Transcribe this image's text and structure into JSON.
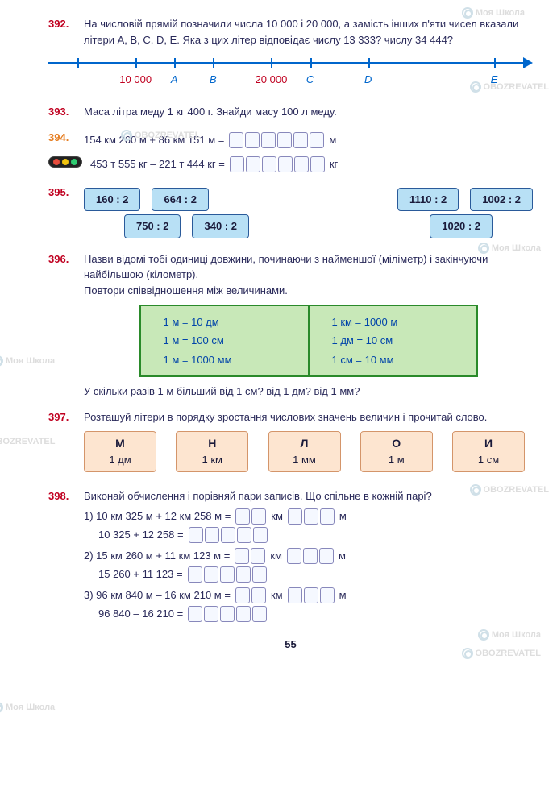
{
  "watermarks": [
    "Моя Школа",
    "OBOZREVATEL"
  ],
  "page_number": "55",
  "ex392": {
    "num": "392.",
    "text": "На числовій прямій позначили числа 10 000 і 20 000, а замість інших п'яти чисел вказали літери A, B, C, D, E. Яка з цих літер відповідає числу 13 333? числу 34 444?",
    "ticks": [
      {
        "pos": 6,
        "label": ""
      },
      {
        "pos": 18,
        "label": "10 000",
        "cls": "red"
      },
      {
        "pos": 26,
        "label": "A",
        "cls": "blue"
      },
      {
        "pos": 34,
        "label": "B",
        "cls": "blue"
      },
      {
        "pos": 46,
        "label": "20 000",
        "cls": "red"
      },
      {
        "pos": 54,
        "label": "C",
        "cls": "blue"
      },
      {
        "pos": 66,
        "label": "D",
        "cls": "blue"
      },
      {
        "pos": 92,
        "label": "E",
        "cls": "blue"
      }
    ]
  },
  "ex393": {
    "num": "393.",
    "text": "Маса літра меду 1 кг 400 г. Знайди масу 100 л меду."
  },
  "ex394": {
    "num": "394.",
    "line1_left": "154 км 260 м + 86 км 151 м =",
    "line1_boxes": 6,
    "line1_unit": "м",
    "line2_left": "453 т 555 кг – 221 т 444 кг =",
    "line2_boxes": 6,
    "line2_unit": "кг"
  },
  "ex395": {
    "num": "395.",
    "row1_left": [
      "160 : 2",
      "664 : 2"
    ],
    "row1_right": [
      "1110 : 2",
      "1002 : 2"
    ],
    "row2_left": [
      "750 : 2",
      "340 : 2"
    ],
    "row2_right": [
      "1020 : 2"
    ]
  },
  "ex396": {
    "num": "396.",
    "text1": "Назви відомі тобі одиниці довжини, починаючи з найменшої (міліметр) і закінчуючи найбільшою (кілометр).",
    "text2": "Повтори співвідношення між величинами.",
    "left": [
      "1 м = 10 дм",
      "1 м = 100 см",
      "1 м = 1000 мм"
    ],
    "right": [
      "1 км = 1000 м",
      "1 дм = 10 см",
      "1 см = 10 мм"
    ],
    "text3": "У скільки разів 1 м більший від 1 см? від 1 дм? від 1 мм?"
  },
  "ex397": {
    "num": "397.",
    "text": "Розташуй літери в порядку зростання числових значень величин і прочитай слово.",
    "cards": [
      {
        "letter": "М",
        "unit": "1 дм"
      },
      {
        "letter": "Н",
        "unit": "1 км"
      },
      {
        "letter": "Л",
        "unit": "1 мм"
      },
      {
        "letter": "О",
        "unit": "1 м"
      },
      {
        "letter": "И",
        "unit": "1 см"
      }
    ]
  },
  "ex398": {
    "num": "398.",
    "text": "Виконай обчислення і порівняй пари записів. Що спільне в кожній парі?",
    "items": [
      {
        "n": "1)",
        "a": "10 км 325 м + 12 км 258 м =",
        "km_boxes": 2,
        "m_boxes": 3,
        "b": "10 325 + 12 258 =",
        "sum_boxes": 5
      },
      {
        "n": "2)",
        "a": "15 км 260 м + 11 км 123 м =",
        "km_boxes": 2,
        "m_boxes": 3,
        "b": "15 260 + 11 123 =",
        "sum_boxes": 5
      },
      {
        "n": "3)",
        "a": "96 км 840 м – 16 км 210 м =",
        "km_boxes": 2,
        "m_boxes": 3,
        "b": "96 840 – 16 210 =",
        "sum_boxes": 5
      }
    ],
    "km": "км",
    "m": "м"
  }
}
